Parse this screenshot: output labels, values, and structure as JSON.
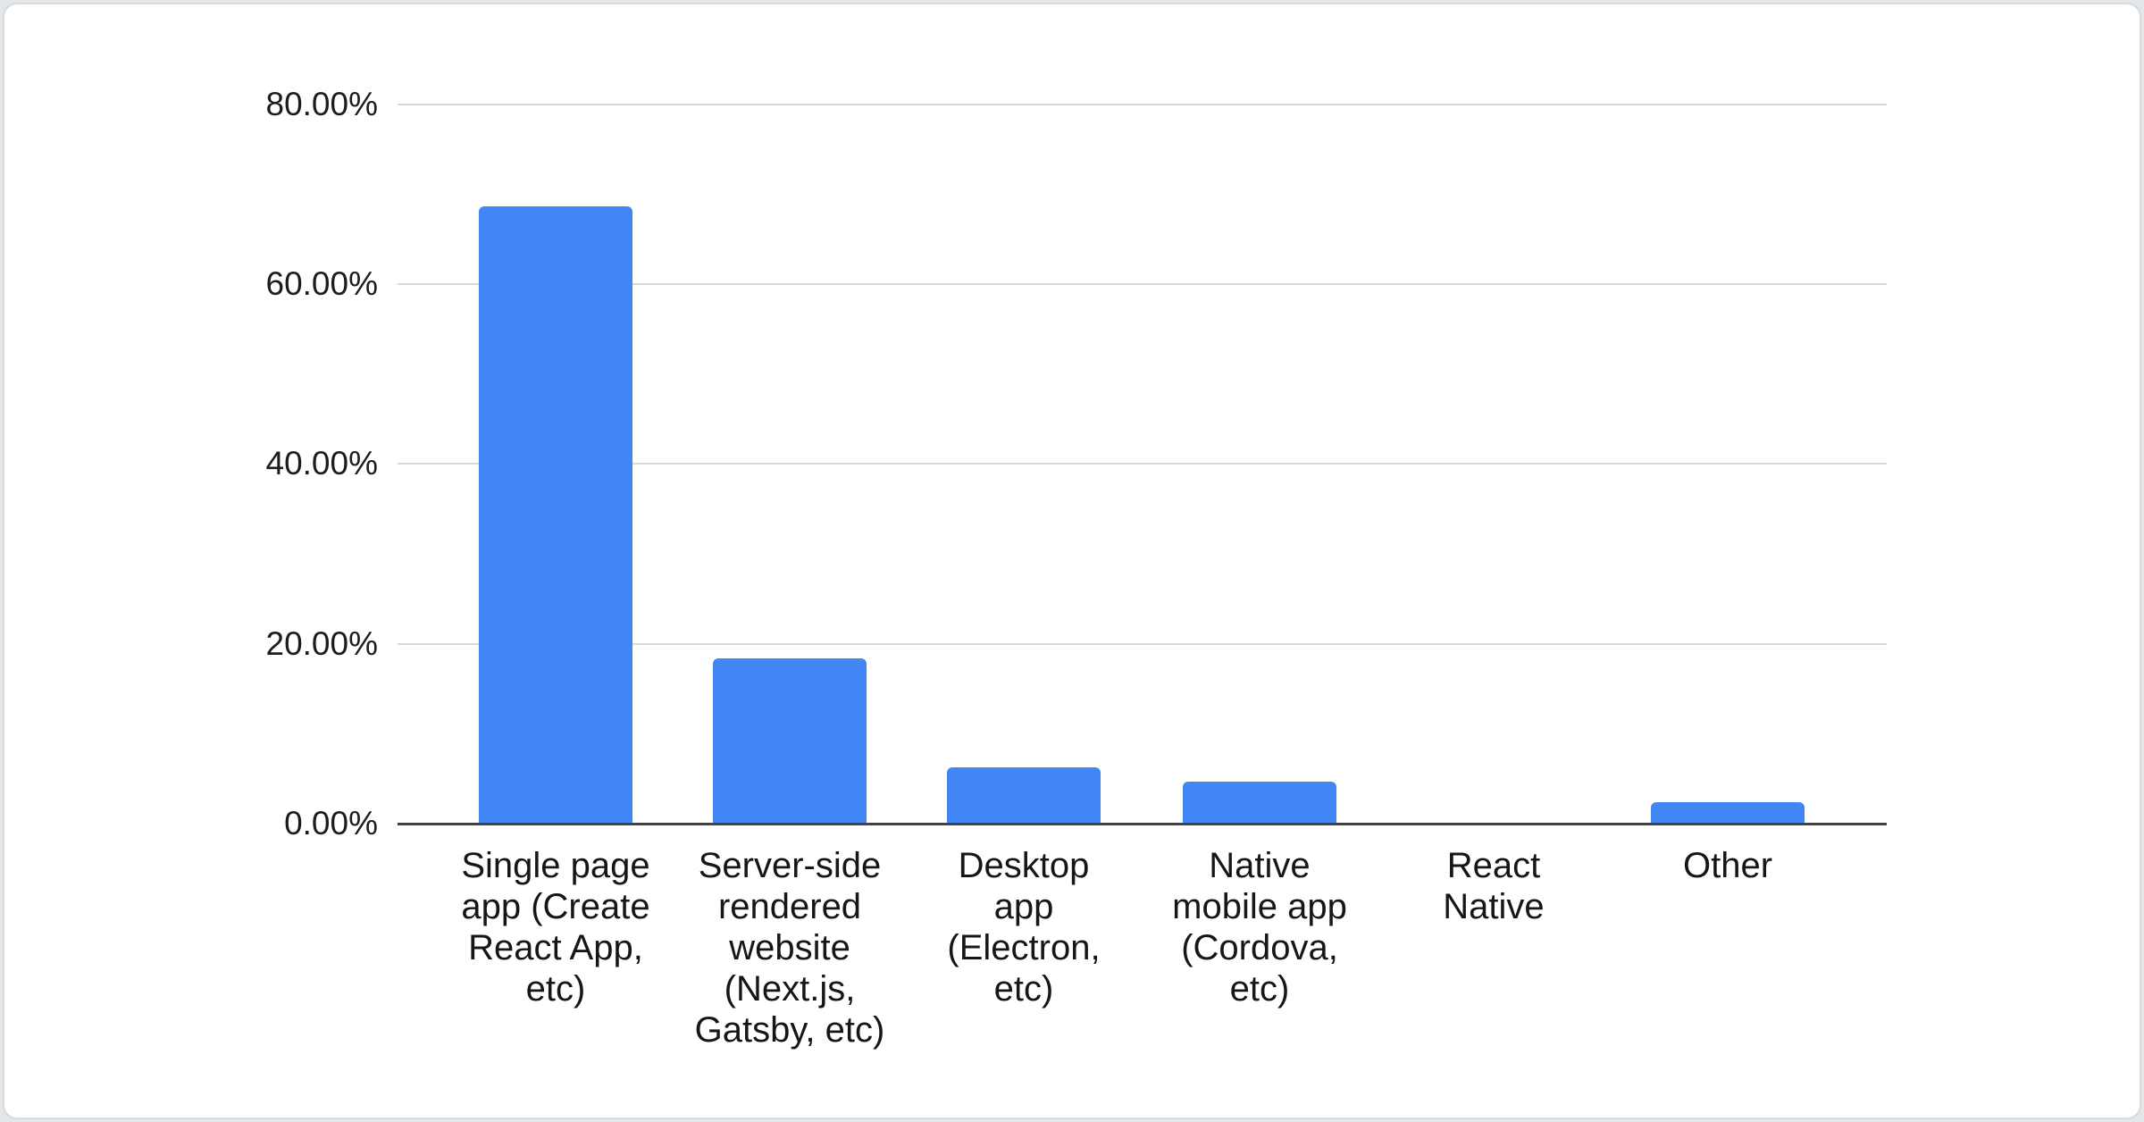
{
  "chart_data": {
    "type": "bar",
    "title": "",
    "categories": [
      "Single page app (Create React App, etc)",
      "Server-side rendered website (Next.js, Gatsby, etc)",
      "Desktop app (Electron, etc)",
      "Native mobile app (Cordova, etc)",
      "React Native",
      "Other"
    ],
    "category_labels_wrapped": [
      "Single page\napp (Create\nReact App,\netc)",
      "Server-side\nrendered\nwebsite\n(Next.js,\nGatsby, etc)",
      "Desktop\napp\n(Electron,\netc)",
      "Native\nmobile app\n(Cordova,\netc)",
      "React\nNative",
      "Other"
    ],
    "values": [
      68.6,
      18.3,
      6.2,
      4.6,
      0,
      2.3
    ],
    "value_unit": "%",
    "xlabel": "",
    "ylabel": "",
    "y_ticks": [
      "80.00%",
      "60.00%",
      "40.00%",
      "20.00%",
      "0.00%"
    ],
    "ylim": [
      0,
      80
    ],
    "grid": true,
    "legend": false,
    "bar_color": "#4285f4",
    "gridline_color": "#d9d9d9",
    "axis_color": "#424242",
    "text_color": "#1c1c1c"
  }
}
